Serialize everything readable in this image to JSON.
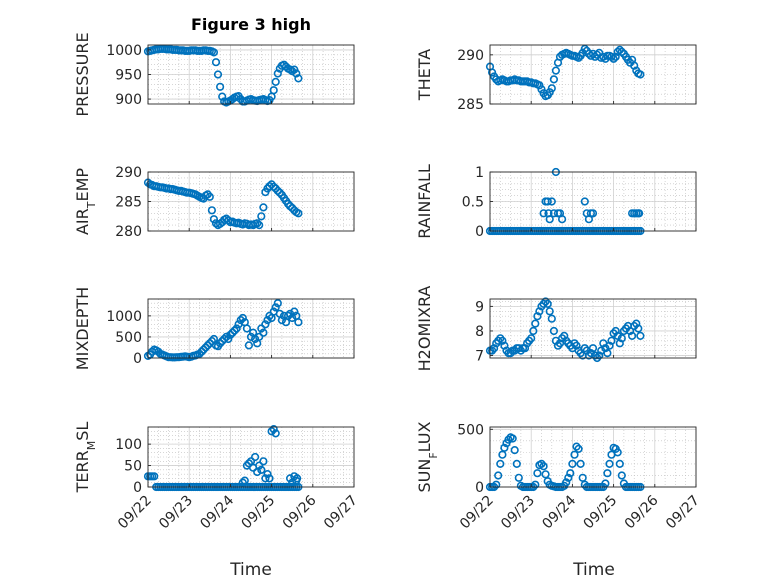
{
  "figure": {
    "title": "Figure 3 high",
    "marker_color": "#0072BD",
    "axis_color": "#262626",
    "grid": true,
    "x_tick_labels": [
      "09/22",
      "09/23",
      "09/24",
      "09/25",
      "09/26",
      "09/27"
    ],
    "x_axis_label": "Time"
  },
  "chart_data": [
    {
      "type": "scatter",
      "name": "pressure",
      "ylabel": "PRESSURE",
      "sub": "",
      "ylim": [
        890,
        1010
      ],
      "yticks": [
        900,
        950,
        1000
      ],
      "x": [
        22.0,
        22.05,
        22.1,
        22.15,
        22.2,
        22.25,
        22.3,
        22.35,
        22.4,
        22.45,
        22.5,
        22.55,
        22.6,
        22.65,
        22.7,
        22.75,
        22.8,
        22.85,
        22.9,
        22.95,
        23.0,
        23.05,
        23.1,
        23.15,
        23.2,
        23.25,
        23.3,
        23.35,
        23.4,
        23.45,
        23.5,
        23.55,
        23.6,
        23.65,
        23.7,
        23.75,
        23.8,
        23.85,
        23.9,
        23.95,
        24.0,
        24.05,
        24.1,
        24.15,
        24.2,
        24.25,
        24.3,
        24.35,
        24.4,
        24.45,
        24.5,
        24.55,
        24.6,
        24.65,
        24.7,
        24.75,
        24.8,
        24.85,
        24.9,
        24.95,
        25.0,
        25.05,
        25.1,
        25.15,
        25.2,
        25.25,
        25.3,
        25.35,
        25.4,
        25.45,
        25.5,
        25.55,
        25.6,
        25.65
      ],
      "y": [
        997,
        998,
        999,
        1000,
        1001,
        1001,
        1002,
        1002,
        1002,
        1001,
        1001,
        1001,
        1000,
        1000,
        1000,
        999,
        999,
        999,
        998,
        998,
        998,
        999,
        999,
        999,
        998,
        998,
        998,
        999,
        999,
        998,
        998,
        997,
        995,
        975,
        950,
        925,
        905,
        895,
        893,
        895,
        897,
        900,
        903,
        905,
        906,
        900,
        895,
        895,
        897,
        899,
        900,
        898,
        897,
        896,
        898,
        899,
        900,
        898,
        896,
        898,
        905,
        918,
        935,
        952,
        962,
        968,
        970,
        966,
        962,
        960,
        957,
        960,
        952,
        942
      ]
    },
    {
      "type": "scatter",
      "name": "theta",
      "ylabel": "THETA",
      "sub": "",
      "ylim": [
        285,
        291
      ],
      "yticks": [
        285,
        290
      ],
      "x": [
        22.0,
        22.05,
        22.1,
        22.15,
        22.2,
        22.25,
        22.3,
        22.35,
        22.4,
        22.45,
        22.5,
        22.55,
        22.6,
        22.65,
        22.7,
        22.75,
        22.8,
        22.85,
        22.9,
        22.95,
        23.0,
        23.05,
        23.1,
        23.15,
        23.2,
        23.25,
        23.3,
        23.35,
        23.4,
        23.45,
        23.5,
        23.55,
        23.6,
        23.65,
        23.7,
        23.75,
        23.8,
        23.85,
        23.9,
        23.95,
        24.0,
        24.05,
        24.1,
        24.15,
        24.2,
        24.25,
        24.3,
        24.35,
        24.4,
        24.45,
        24.5,
        24.55,
        24.6,
        24.65,
        24.7,
        24.75,
        24.8,
        24.85,
        24.9,
        24.95,
        25.0,
        25.05,
        25.1,
        25.15,
        25.2,
        25.25,
        25.3,
        25.35,
        25.4,
        25.45,
        25.5,
        25.55,
        25.6,
        25.65
      ],
      "y": [
        288.8,
        288.2,
        287.8,
        287.5,
        287.3,
        287.4,
        287.5,
        287.4,
        287.3,
        287.3,
        287.4,
        287.4,
        287.5,
        287.4,
        287.4,
        287.3,
        287.3,
        287.3,
        287.3,
        287.2,
        287.2,
        287.1,
        287.1,
        287.0,
        286.9,
        286.5,
        286.1,
        285.8,
        285.9,
        286.2,
        286.6,
        287.5,
        288.4,
        289.2,
        289.8,
        290.0,
        290.1,
        290.2,
        290.1,
        290.0,
        289.9,
        289.9,
        289.8,
        289.7,
        289.9,
        290.2,
        290.6,
        290.4,
        290.1,
        289.9,
        290.1,
        289.8,
        290.0,
        290.2,
        289.7,
        289.8,
        289.6,
        289.9,
        289.9,
        289.8,
        289.6,
        289.8,
        290.3,
        290.5,
        290.3,
        290.1,
        289.8,
        289.5,
        289.2,
        289.5,
        288.9,
        288.4,
        288.1,
        288.0
      ]
    },
    {
      "type": "scatter",
      "name": "air-temp",
      "ylabel": "AIR",
      "sub": "T",
      "ylabel_suffix": "EMP",
      "ylim": [
        280,
        290
      ],
      "yticks": [
        280,
        285,
        290
      ],
      "x": [
        22.0,
        22.05,
        22.1,
        22.15,
        22.2,
        22.25,
        22.3,
        22.35,
        22.4,
        22.45,
        22.5,
        22.55,
        22.6,
        22.65,
        22.7,
        22.75,
        22.8,
        22.85,
        22.9,
        22.95,
        23.0,
        23.05,
        23.1,
        23.15,
        23.2,
        23.25,
        23.3,
        23.35,
        23.4,
        23.45,
        23.5,
        23.55,
        23.6,
        23.65,
        23.7,
        23.75,
        23.8,
        23.85,
        23.9,
        23.95,
        24.0,
        24.05,
        24.1,
        24.15,
        24.2,
        24.25,
        24.3,
        24.35,
        24.4,
        24.45,
        24.5,
        24.55,
        24.6,
        24.65,
        24.7,
        24.75,
        24.8,
        24.85,
        24.9,
        24.95,
        25.0,
        25.05,
        25.1,
        25.15,
        25.2,
        25.25,
        25.3,
        25.35,
        25.4,
        25.45,
        25.5,
        25.55,
        25.6,
        25.65
      ],
      "y": [
        288.2,
        287.9,
        287.8,
        287.6,
        287.6,
        287.5,
        287.4,
        287.4,
        287.3,
        287.2,
        287.2,
        287.1,
        287.1,
        287.0,
        286.9,
        286.8,
        286.8,
        286.7,
        286.6,
        286.5,
        286.5,
        286.4,
        286.3,
        286.2,
        286.0,
        285.8,
        285.6,
        285.5,
        286.0,
        286.2,
        285.8,
        283.5,
        282.0,
        281.3,
        281.0,
        281.2,
        281.5,
        281.9,
        282.1,
        281.8,
        281.5,
        281.6,
        281.4,
        281.3,
        281.4,
        281.2,
        281.1,
        281.3,
        281.2,
        281.0,
        281.1,
        281.0,
        281.2,
        281.3,
        281.0,
        282.5,
        284.0,
        286.6,
        287.2,
        287.6,
        287.9,
        287.5,
        287.2,
        286.8,
        286.5,
        286.1,
        285.6,
        285.1,
        284.6,
        284.2,
        283.9,
        283.5,
        283.2,
        283.0
      ]
    },
    {
      "type": "scatter",
      "name": "rainfall",
      "ylabel": "RAINFALL",
      "sub": "",
      "ylim": [
        0,
        1
      ],
      "yticks": [
        0,
        0.5,
        1
      ],
      "x": [
        22.0,
        22.05,
        22.1,
        22.15,
        22.2,
        22.25,
        22.3,
        22.35,
        22.4,
        22.45,
        22.5,
        22.55,
        22.6,
        22.65,
        22.7,
        22.75,
        22.8,
        22.85,
        22.9,
        22.95,
        23.0,
        23.05,
        23.1,
        23.15,
        23.2,
        23.25,
        23.3,
        23.35,
        23.4,
        23.45,
        23.5,
        23.55,
        23.6,
        23.65,
        23.7,
        23.75,
        23.8,
        23.85,
        23.9,
        23.95,
        24.0,
        24.05,
        24.1,
        24.15,
        24.2,
        24.25,
        24.3,
        24.35,
        24.4,
        24.45,
        24.5,
        24.55,
        24.6,
        24.65,
        24.7,
        24.75,
        24.8,
        24.85,
        24.9,
        24.95,
        25.0,
        25.05,
        25.1,
        25.15,
        25.2,
        25.25,
        25.3,
        25.35,
        25.4,
        25.45,
        25.5,
        25.55,
        25.6,
        25.65,
        23.3,
        23.35,
        23.4,
        23.42,
        23.45,
        23.5,
        23.55,
        23.6,
        23.65,
        23.7,
        23.75,
        24.3,
        24.35,
        24.4,
        24.45,
        24.5,
        25.45,
        25.5,
        25.55,
        25.6,
        25.62
      ],
      "y": [
        0,
        0,
        0,
        0,
        0,
        0,
        0,
        0,
        0,
        0,
        0,
        0,
        0,
        0,
        0,
        0,
        0,
        0,
        0,
        0,
        0,
        0,
        0,
        0,
        0,
        0,
        0,
        0,
        0,
        0,
        0,
        0,
        0,
        0,
        0,
        0,
        0,
        0,
        0,
        0,
        0,
        0,
        0,
        0,
        0,
        0,
        0,
        0,
        0,
        0,
        0,
        0,
        0,
        0,
        0,
        0,
        0,
        0,
        0,
        0,
        0,
        0,
        0,
        0,
        0,
        0,
        0,
        0,
        0,
        0,
        0,
        0,
        0,
        0,
        0.3,
        0.5,
        0.5,
        0.3,
        0.2,
        0.5,
        0.3,
        1.0,
        0.3,
        0.3,
        0.2,
        0.5,
        0.3,
        0.2,
        0.3,
        0.3,
        0.3,
        0.3,
        0.3,
        0.3,
        0.3
      ]
    },
    {
      "type": "scatter",
      "name": "mixdepth",
      "ylabel": "MIXDEPTH",
      "sub": "",
      "ylim": [
        0,
        1400
      ],
      "yticks": [
        0,
        500,
        1000
      ],
      "x": [
        22.0,
        22.05,
        22.1,
        22.15,
        22.2,
        22.25,
        22.3,
        22.35,
        22.4,
        22.45,
        22.5,
        22.55,
        22.6,
        22.65,
        22.7,
        22.75,
        22.8,
        22.85,
        22.9,
        22.95,
        23.0,
        23.05,
        23.1,
        23.15,
        23.2,
        23.25,
        23.3,
        23.35,
        23.4,
        23.45,
        23.5,
        23.55,
        23.6,
        23.65,
        23.7,
        23.75,
        23.8,
        23.85,
        23.9,
        23.95,
        24.0,
        24.05,
        24.1,
        24.15,
        24.2,
        24.25,
        24.3,
        24.35,
        24.4,
        24.45,
        24.5,
        24.55,
        24.6,
        24.65,
        24.7,
        24.75,
        24.8,
        24.85,
        24.9,
        24.95,
        25.0,
        25.05,
        25.1,
        25.15,
        25.2,
        25.25,
        25.3,
        25.35,
        25.4,
        25.45,
        25.5,
        25.55,
        25.6,
        25.65
      ],
      "y": [
        50,
        80,
        150,
        200,
        180,
        150,
        100,
        80,
        60,
        40,
        20,
        20,
        15,
        15,
        20,
        20,
        25,
        30,
        40,
        30,
        20,
        30,
        50,
        60,
        80,
        100,
        150,
        200,
        250,
        300,
        350,
        400,
        450,
        300,
        280,
        350,
        400,
        450,
        500,
        450,
        550,
        600,
        650,
        700,
        800,
        900,
        950,
        850,
        700,
        300,
        500,
        600,
        450,
        350,
        500,
        700,
        600,
        800,
        900,
        1000,
        950,
        1100,
        1200,
        1300,
        1050,
        900,
        1000,
        850,
        1000,
        1050,
        950,
        1100,
        1000,
        850
      ]
    },
    {
      "type": "scatter",
      "name": "h2omixra",
      "ylabel": "H2OMIXRA",
      "sub": "",
      "ylim": [
        6.9,
        9.3
      ],
      "yticks": [
        7,
        8,
        9
      ],
      "x": [
        22.0,
        22.05,
        22.1,
        22.15,
        22.2,
        22.25,
        22.3,
        22.35,
        22.4,
        22.45,
        22.5,
        22.55,
        22.6,
        22.65,
        22.7,
        22.75,
        22.8,
        22.85,
        22.9,
        22.95,
        23.0,
        23.05,
        23.1,
        23.15,
        23.2,
        23.25,
        23.3,
        23.35,
        23.4,
        23.45,
        23.5,
        23.55,
        23.6,
        23.65,
        23.7,
        23.75,
        23.8,
        23.85,
        23.9,
        23.95,
        24.0,
        24.05,
        24.1,
        24.15,
        24.2,
        24.25,
        24.3,
        24.35,
        24.4,
        24.45,
        24.5,
        24.55,
        24.6,
        24.65,
        24.7,
        24.75,
        24.8,
        24.85,
        24.9,
        24.95,
        25.0,
        25.05,
        25.1,
        25.15,
        25.2,
        25.25,
        25.3,
        25.35,
        25.4,
        25.45,
        25.5,
        25.55,
        25.6,
        25.65
      ],
      "y": [
        7.2,
        7.2,
        7.3,
        7.5,
        7.6,
        7.7,
        7.6,
        7.4,
        7.2,
        7.1,
        7.1,
        7.2,
        7.2,
        7.3,
        7.3,
        7.2,
        7.3,
        7.3,
        7.5,
        7.6,
        7.7,
        8.0,
        8.3,
        8.6,
        8.8,
        9.0,
        9.1,
        9.2,
        9.1,
        8.8,
        8.5,
        8.0,
        7.6,
        7.4,
        7.5,
        7.7,
        7.8,
        7.6,
        7.5,
        7.4,
        7.3,
        7.5,
        7.4,
        7.2,
        7.1,
        7.0,
        7.3,
        7.2,
        7.0,
        7.1,
        7.3,
        7.0,
        6.9,
        7.0,
        7.2,
        7.5,
        7.3,
        7.1,
        7.4,
        7.6,
        7.9,
        8.0,
        7.8,
        7.5,
        7.7,
        8.0,
        8.1,
        8.2,
        8.0,
        7.8,
        8.2,
        8.3,
        8.1,
        7.8
      ]
    },
    {
      "type": "scatter",
      "name": "terr-msl",
      "ylabel": "TERR",
      "sub": "M",
      "ylabel_suffix": "SL",
      "ylim": [
        0,
        140
      ],
      "yticks": [
        0,
        50,
        100
      ],
      "x": [
        22.0,
        22.05,
        22.1,
        22.15,
        22.2,
        22.25,
        22.3,
        22.35,
        22.4,
        22.45,
        22.5,
        22.55,
        22.6,
        22.65,
        22.7,
        22.75,
        22.8,
        22.85,
        22.9,
        22.95,
        23.0,
        23.05,
        23.1,
        23.15,
        23.2,
        23.25,
        23.3,
        23.35,
        23.4,
        23.45,
        23.5,
        23.55,
        23.6,
        23.65,
        23.7,
        23.75,
        23.8,
        23.85,
        23.9,
        23.95,
        24.0,
        24.05,
        24.1,
        24.15,
        24.2,
        24.25,
        24.3,
        24.35,
        24.4,
        24.45,
        24.5,
        24.55,
        24.6,
        24.65,
        24.7,
        24.75,
        24.8,
        24.85,
        24.9,
        24.95,
        25.0,
        25.05,
        25.1,
        25.15,
        25.2,
        25.25,
        25.3,
        25.35,
        25.4,
        25.45,
        25.5,
        25.55,
        25.6,
        25.65,
        24.3,
        24.35,
        24.4,
        24.45,
        24.5,
        24.55,
        24.6,
        24.65,
        24.7,
        24.75,
        24.8,
        24.85,
        24.9,
        24.95,
        25.0,
        25.05,
        25.1,
        25.45,
        25.5,
        25.55,
        25.6,
        25.62
      ],
      "y": [
        25,
        25,
        25,
        25,
        0,
        0,
        0,
        0,
        0,
        0,
        0,
        0,
        0,
        0,
        0,
        0,
        0,
        0,
        0,
        0,
        0,
        0,
        0,
        0,
        0,
        0,
        0,
        0,
        0,
        0,
        0,
        0,
        0,
        0,
        0,
        0,
        0,
        0,
        0,
        0,
        0,
        0,
        0,
        0,
        0,
        0,
        0,
        0,
        0,
        0,
        0,
        0,
        0,
        0,
        0,
        0,
        0,
        0,
        0,
        0,
        0,
        0,
        0,
        0,
        0,
        0,
        0,
        0,
        0,
        0,
        0,
        0,
        0,
        0,
        10,
        15,
        50,
        55,
        60,
        45,
        70,
        35,
        50,
        40,
        60,
        20,
        30,
        20,
        130,
        135,
        125,
        20,
        10,
        25,
        15,
        20
      ]
    },
    {
      "type": "scatter",
      "name": "sun-flux",
      "ylabel": "SUN",
      "sub": "F",
      "ylabel_suffix": "LUX",
      "ylim": [
        0,
        520
      ],
      "yticks": [
        0,
        500
      ],
      "x": [
        22.0,
        22.05,
        22.1,
        22.15,
        22.2,
        22.25,
        22.3,
        22.35,
        22.4,
        22.45,
        22.5,
        22.55,
        22.6,
        22.65,
        22.7,
        22.75,
        22.8,
        22.85,
        22.9,
        22.95,
        23.0,
        23.05,
        23.1,
        23.15,
        23.2,
        23.25,
        23.3,
        23.35,
        23.4,
        23.45,
        23.5,
        23.55,
        23.6,
        23.65,
        23.7,
        23.75,
        23.8,
        23.85,
        23.9,
        23.95,
        24.0,
        24.05,
        24.1,
        24.15,
        24.2,
        24.25,
        24.3,
        24.35,
        24.4,
        24.45,
        24.5,
        24.55,
        24.6,
        24.65,
        24.7,
        24.75,
        24.8,
        24.85,
        24.9,
        24.95,
        25.0,
        25.05,
        25.1,
        25.15,
        25.2,
        25.25,
        25.3,
        25.35,
        25.4,
        25.45,
        25.5,
        25.55,
        25.6,
        25.65
      ],
      "y": [
        0,
        0,
        0,
        20,
        100,
        200,
        280,
        340,
        380,
        410,
        430,
        420,
        320,
        200,
        80,
        10,
        0,
        0,
        0,
        0,
        0,
        0,
        20,
        120,
        190,
        200,
        180,
        110,
        50,
        20,
        10,
        5,
        0,
        0,
        0,
        0,
        10,
        40,
        80,
        120,
        200,
        280,
        350,
        330,
        200,
        80,
        20,
        0,
        0,
        0,
        0,
        0,
        0,
        0,
        0,
        0,
        30,
        120,
        200,
        280,
        340,
        330,
        300,
        200,
        100,
        30,
        0,
        0,
        0,
        0,
        0,
        0,
        0,
        0
      ]
    }
  ]
}
